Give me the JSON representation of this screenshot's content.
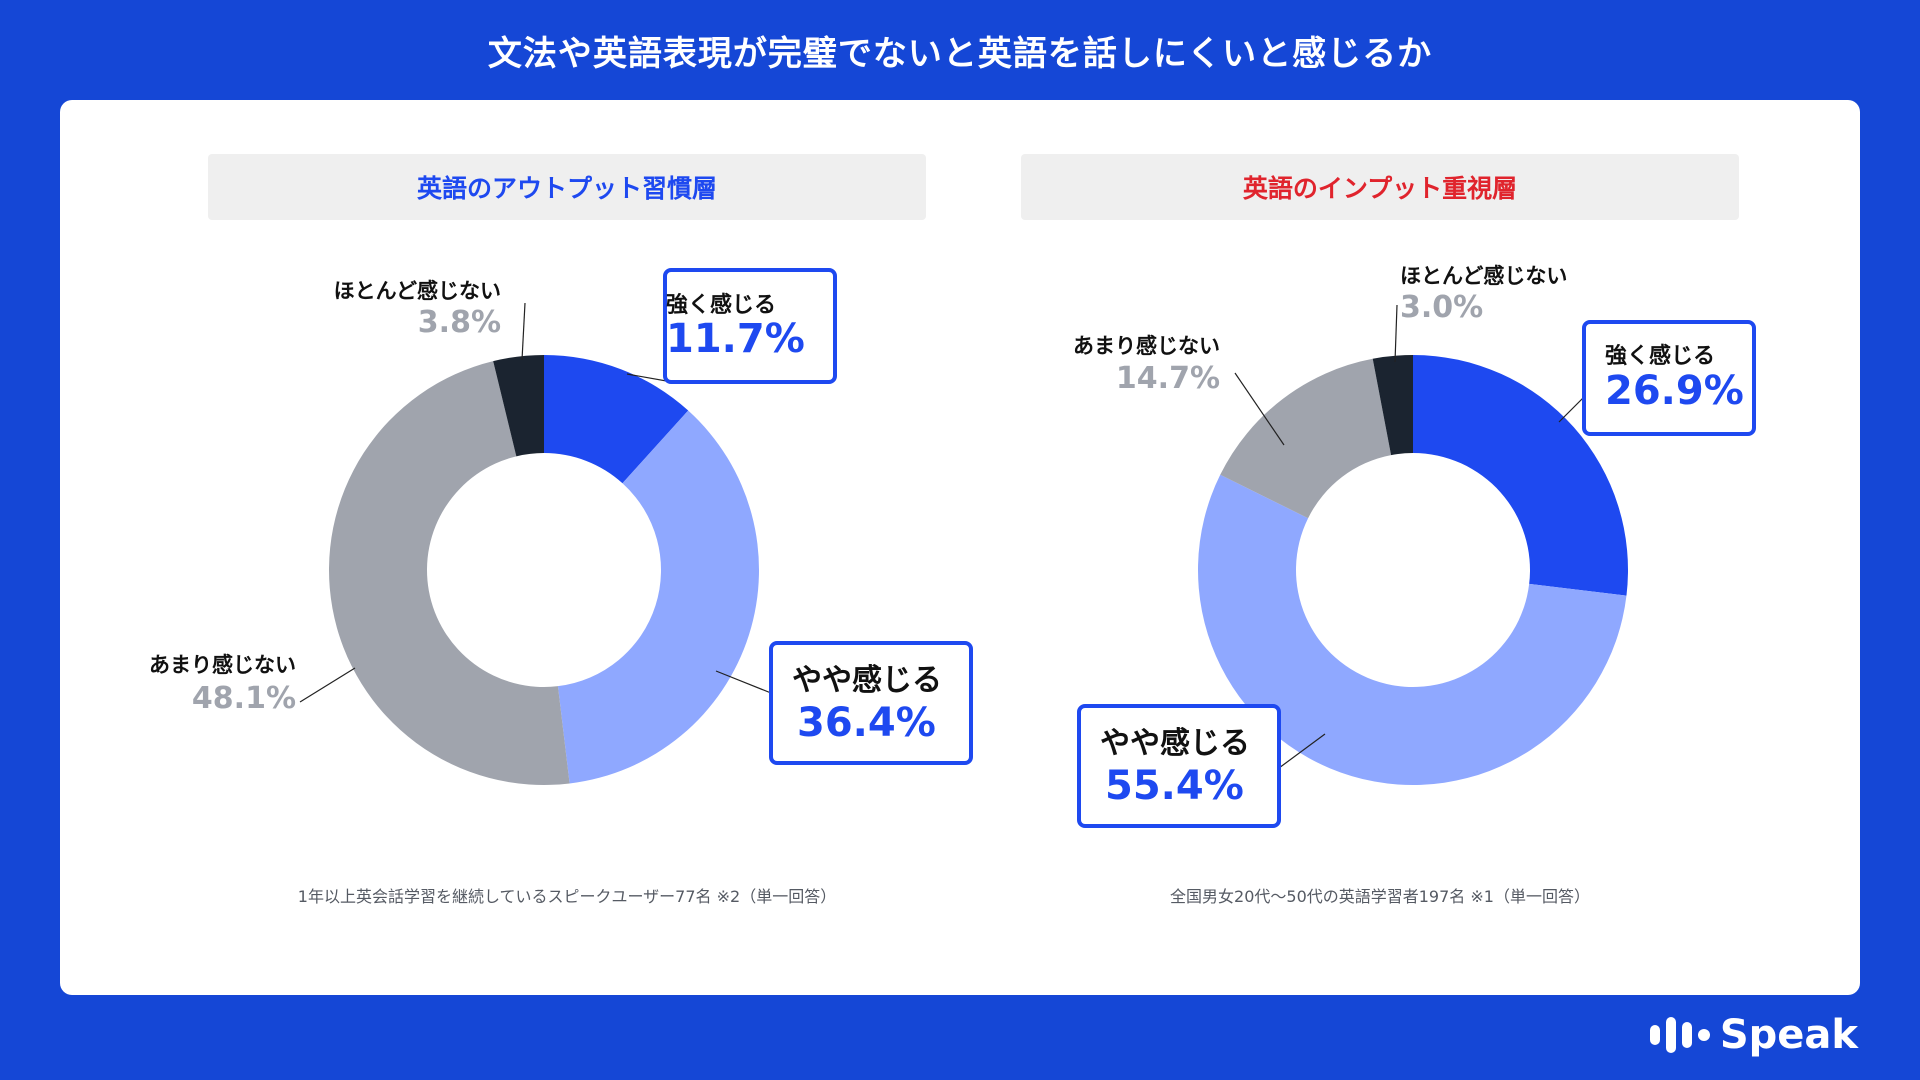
{
  "title": "文法や英語表現が完璧でないと英語を話しにくいと感じるか",
  "brand": "Speak",
  "colors": {
    "background": "#1547d6",
    "strong": "#1e49f0",
    "somewhat": "#8fa8ff",
    "not_much": "#a0a4ad",
    "hardly": "#1b2430",
    "left_header": "#1e49f0",
    "right_header": "#e0242d"
  },
  "chart_data": [
    {
      "type": "pie",
      "subtitle": "英語のアウトプット習慣層",
      "note": "1年以上英会話学習を継続しているスピークユーザー77名 ※2（単一回答）",
      "slices": [
        {
          "label": "強く感じる",
          "display": "11.7%",
          "value": 11.7
        },
        {
          "label": "やや感じる",
          "display": "36.4%",
          "value": 36.4
        },
        {
          "label": "あまり感じない",
          "display": "48.1%",
          "value": 48.1
        },
        {
          "label": "ほとんど感じない",
          "display": "3.8%",
          "value": 3.8
        }
      ]
    },
    {
      "type": "pie",
      "subtitle": "英語のインプット重視層",
      "note": "全国男女20代〜50代の英語学習者197名 ※1（単一回答）",
      "slices": [
        {
          "label": "強く感じる",
          "display": "26.9%",
          "value": 26.9
        },
        {
          "label": "やや感じる",
          "display": "55.4%",
          "value": 55.4
        },
        {
          "label": "あまり感じない",
          "display": "14.7%",
          "value": 14.7
        },
        {
          "label": "ほとんど感じない",
          "display": "3.0%",
          "value": 3.0
        }
      ]
    }
  ]
}
